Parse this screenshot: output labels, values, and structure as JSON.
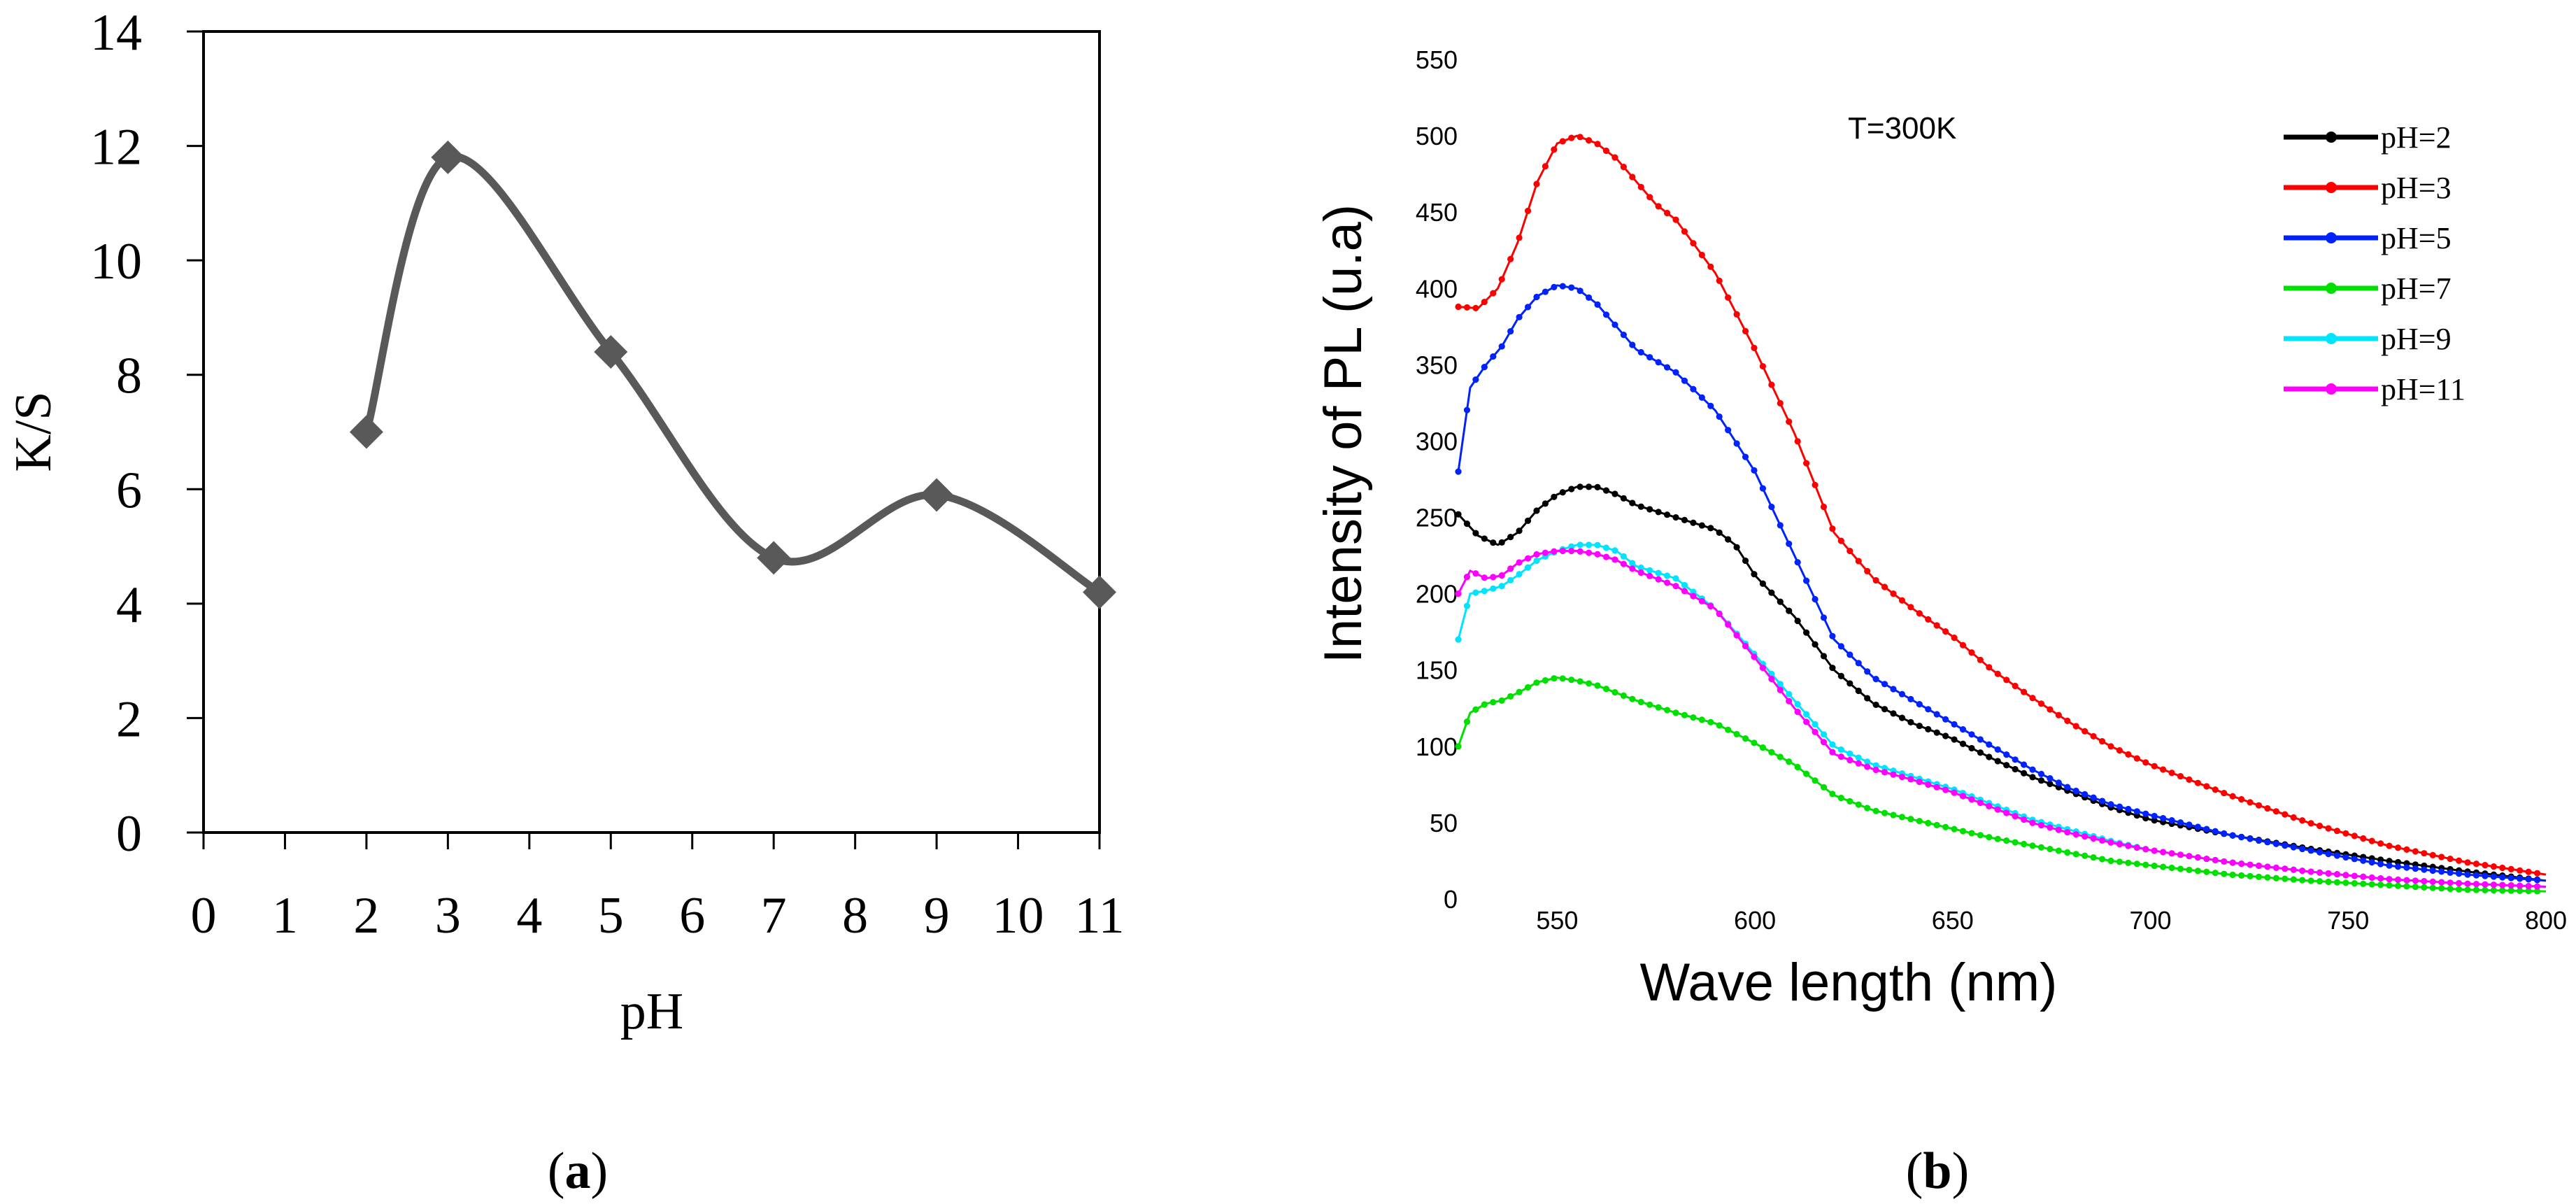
{
  "chart_data": [
    {
      "id": "a",
      "type": "line",
      "marker": "diamond",
      "caption": "(a)",
      "caption_letter": "a",
      "xlabel": "pH",
      "ylabel": "K/S",
      "xlim": [
        0,
        11
      ],
      "ylim": [
        0,
        14
      ],
      "xticks": [
        "0",
        "1",
        "2",
        "3",
        "4",
        "5",
        "6",
        "7",
        "8",
        "9",
        "10",
        "11"
      ],
      "yticks": [
        "0",
        "2",
        "4",
        "6",
        "8",
        "10",
        "12",
        "14"
      ],
      "line_color": "#595959",
      "series": [
        {
          "name": "K/S",
          "x": [
            2,
            3,
            5,
            7,
            9,
            11
          ],
          "y": [
            7.0,
            11.8,
            8.4,
            4.8,
            5.9,
            4.2
          ]
        }
      ]
    },
    {
      "id": "b",
      "type": "line",
      "marker": "dot",
      "caption": "(b)",
      "caption_letter": "b",
      "xlabel": "Wave length (nm)",
      "ylabel": "Intensity of PL (u.a)",
      "annotation": "T=300K",
      "xlim": [
        525,
        800
      ],
      "ylim": [
        0,
        550
      ],
      "xticks": [
        "550",
        "600",
        "650",
        "700",
        "750",
        "800"
      ],
      "xtick_values": [
        550,
        600,
        650,
        700,
        750,
        800
      ],
      "yticks": [
        "0",
        "50",
        "100",
        "150",
        "200",
        "250",
        "300",
        "350",
        "400",
        "450",
        "500",
        "550"
      ],
      "ytick_values": [
        0,
        50,
        100,
        150,
        200,
        250,
        300,
        350,
        400,
        450,
        500,
        550
      ],
      "series": [
        {
          "name": "pH=2",
          "color": "#000000",
          "x": [
            525,
            530,
            535,
            540,
            545,
            550,
            555,
            560,
            565,
            570,
            580,
            590,
            595,
            600,
            610,
            620,
            630,
            640,
            650,
            660,
            670,
            680,
            690,
            700,
            720,
            740,
            760,
            780,
            800
          ],
          "y": [
            252,
            238,
            232,
            240,
            255,
            265,
            270,
            270,
            265,
            258,
            250,
            242,
            232,
            212,
            185,
            150,
            128,
            115,
            105,
            92,
            80,
            70,
            60,
            52,
            42,
            33,
            25,
            18,
            12
          ]
        },
        {
          "name": "pH=3",
          "color": "#ff0000",
          "x": [
            525,
            530,
            535,
            540,
            545,
            550,
            555,
            560,
            565,
            570,
            575,
            580,
            590,
            600,
            610,
            620,
            630,
            640,
            650,
            660,
            670,
            680,
            690,
            700,
            720,
            740,
            760,
            780,
            800
          ],
          "y": [
            388,
            387,
            400,
            430,
            470,
            495,
            500,
            495,
            485,
            470,
            455,
            445,
            410,
            360,
            305,
            240,
            210,
            190,
            172,
            150,
            132,
            115,
            100,
            88,
            68,
            50,
            35,
            24,
            16
          ]
        },
        {
          "name": "pH=5",
          "color": "#0022ff",
          "x": [
            525,
            528,
            532,
            536,
            540,
            545,
            550,
            555,
            560,
            565,
            570,
            580,
            590,
            600,
            610,
            620,
            630,
            640,
            650,
            660,
            670,
            680,
            690,
            700,
            720,
            740,
            760,
            780,
            800
          ],
          "y": [
            280,
            335,
            350,
            362,
            380,
            395,
            402,
            400,
            390,
            375,
            360,
            345,
            320,
            280,
            225,
            170,
            145,
            130,
            115,
            100,
            85,
            72,
            62,
            55,
            42,
            32,
            22,
            16,
            12
          ]
        },
        {
          "name": "pH=7",
          "color": "#00e000",
          "x": [
            525,
            528,
            532,
            536,
            540,
            545,
            550,
            555,
            560,
            570,
            580,
            590,
            600,
            610,
            620,
            630,
            640,
            650,
            660,
            670,
            680,
            690,
            700,
            720,
            740,
            760,
            780,
            800
          ],
          "y": [
            100,
            122,
            128,
            130,
            135,
            142,
            145,
            143,
            140,
            130,
            122,
            115,
            102,
            88,
            68,
            58,
            52,
            46,
            40,
            35,
            30,
            25,
            22,
            16,
            12,
            9,
            6,
            5
          ]
        },
        {
          "name": "pH=9",
          "color": "#00e5ff",
          "x": [
            525,
            528,
            532,
            536,
            540,
            545,
            550,
            555,
            560,
            565,
            570,
            580,
            590,
            600,
            610,
            620,
            630,
            640,
            650,
            660,
            670,
            680,
            690,
            700,
            720,
            740,
            760,
            780,
            800
          ],
          "y": [
            170,
            200,
            202,
            205,
            212,
            222,
            228,
            232,
            232,
            228,
            218,
            210,
            190,
            160,
            130,
            100,
            88,
            80,
            72,
            62,
            52,
            45,
            38,
            32,
            24,
            18,
            13,
            10,
            8
          ]
        },
        {
          "name": "pH=11",
          "color": "#ff00ff",
          "x": [
            525,
            528,
            532,
            536,
            540,
            545,
            550,
            555,
            560,
            565,
            570,
            580,
            590,
            600,
            610,
            620,
            630,
            640,
            650,
            660,
            670,
            680,
            690,
            700,
            720,
            740,
            760,
            780,
            800
          ],
          "y": [
            200,
            215,
            210,
            212,
            220,
            226,
            228,
            228,
            226,
            222,
            215,
            205,
            190,
            158,
            125,
            95,
            85,
            78,
            70,
            60,
            50,
            43,
            37,
            32,
            24,
            18,
            13,
            10,
            8
          ]
        }
      ]
    }
  ]
}
